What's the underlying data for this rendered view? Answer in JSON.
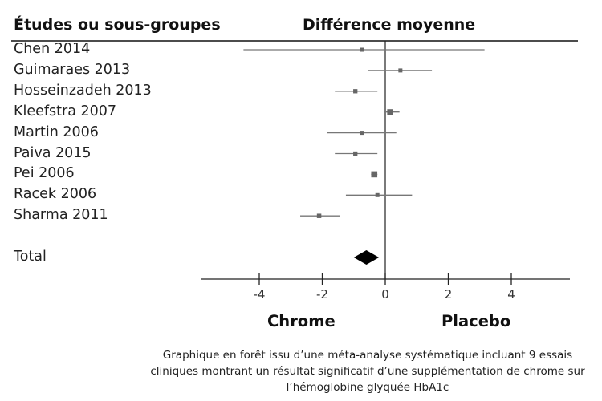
{
  "headers": {
    "studies": "Études ou sous-groupes",
    "effect": "Différence moyenne"
  },
  "chart_data": {
    "type": "forest",
    "studies": [
      {
        "name": "Chen 2014",
        "estimate": -0.75,
        "ci": [
          -4.5,
          3.15
        ]
      },
      {
        "name": "Guimaraes 2013",
        "estimate": 0.48,
        "ci": [
          -0.55,
          1.48
        ]
      },
      {
        "name": "Hosseinzadeh 2013",
        "estimate": -0.95,
        "ci": [
          -1.6,
          -0.25
        ]
      },
      {
        "name": "Kleefstra 2007",
        "estimate": 0.15,
        "ci": [
          -0.05,
          0.45
        ]
      },
      {
        "name": "Martin 2006",
        "estimate": -0.75,
        "ci": [
          -1.85,
          0.35
        ]
      },
      {
        "name": "Paiva 2015",
        "estimate": -0.95,
        "ci": [
          -1.6,
          -0.25
        ]
      },
      {
        "name": "Pei 2006",
        "estimate": -0.35,
        "ci": [
          -0.45,
          -0.25
        ]
      },
      {
        "name": "Racek 2006",
        "estimate": -0.25,
        "ci": [
          -1.25,
          0.85
        ]
      },
      {
        "name": "Sharma 2011",
        "estimate": -2.1,
        "ci": [
          -2.7,
          -1.45
        ]
      }
    ],
    "total": {
      "label": "Total",
      "estimate": -0.6,
      "ci": [
        -1.0,
        -0.2
      ]
    },
    "xlim": [
      -5.8,
      5.8
    ],
    "xticks": [
      -4,
      -2,
      0,
      2,
      4
    ],
    "xtick_labels": [
      "-4",
      "-2",
      "0",
      "2",
      "4"
    ],
    "left_label": "Chrome",
    "right_label": "Placebo"
  },
  "caption": "Graphique en forêt issu d’une méta-analyse systématique incluant 9 essais cliniques montrant un résultat significatif d’une supplémentation de chrome sur l’hémoglobine glyquée HbA1c"
}
